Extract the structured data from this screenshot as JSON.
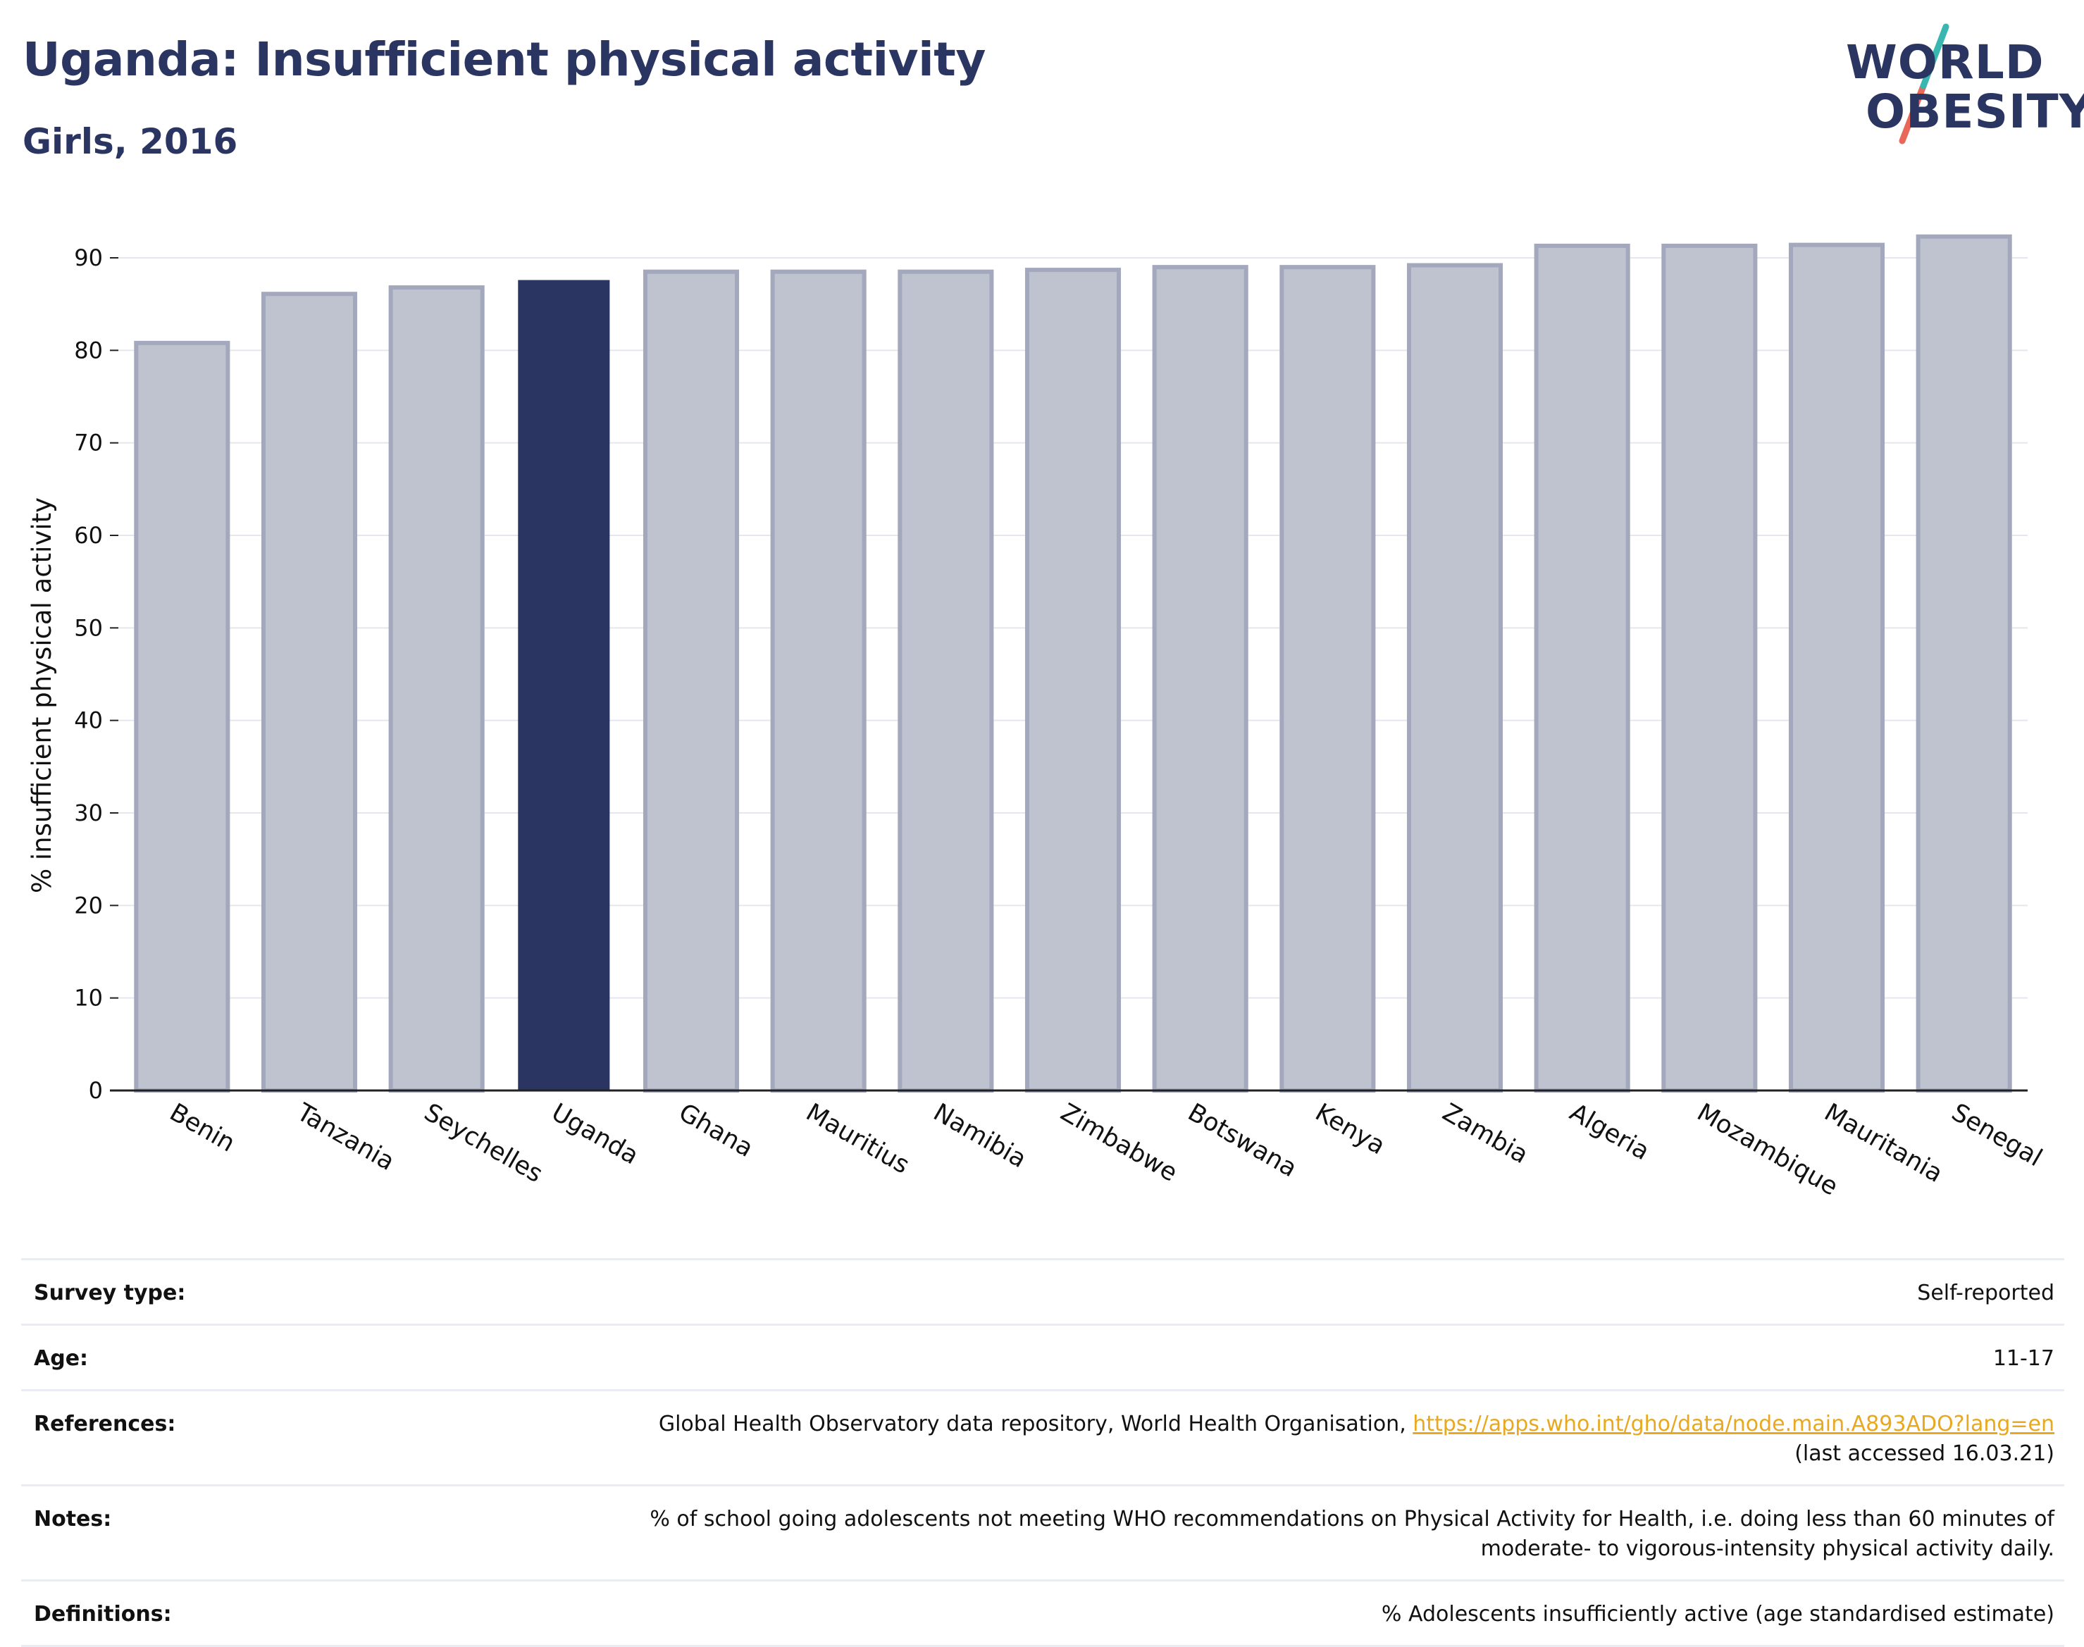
{
  "header": {
    "title": "Uganda: Insufficient physical activity",
    "subtitle": "Girls, 2016"
  },
  "logo": {
    "line1": "WORLD",
    "line2": "OBESITY",
    "accent_teal": "#3ab6b0",
    "accent_red": "#e8685a"
  },
  "chart_data": {
    "type": "bar",
    "ylabel": "% insufficient physical activity",
    "xlabel": "",
    "ylim": [
      0,
      95
    ],
    "yticks": [
      0,
      10,
      20,
      30,
      40,
      50,
      60,
      70,
      80,
      90
    ],
    "grid": true,
    "categories": [
      "Benin",
      "Tanzania",
      "Seychelles",
      "Uganda",
      "Ghana",
      "Mauritius",
      "Namibia",
      "Zimbabwe",
      "Botswana",
      "Kenya",
      "Zambia",
      "Algeria",
      "Mozambique",
      "Mauritania",
      "Senegal"
    ],
    "values": [
      80.8,
      86.1,
      86.8,
      87.6,
      88.5,
      88.5,
      88.5,
      88.7,
      89.0,
      89.0,
      89.2,
      91.3,
      91.3,
      91.4,
      92.3
    ],
    "highlight": "Uganda",
    "colors": {
      "bar": "#bfc2cf",
      "bar_edge": "#a3a8bd",
      "highlight": "#2b3562"
    }
  },
  "info": {
    "survey_type": {
      "label": "Survey type:",
      "value": "Self-reported"
    },
    "age": {
      "label": "Age:",
      "value": "11-17"
    },
    "references": {
      "label": "References:",
      "text": "Global Health Observatory data repository, World Health Organisation, ",
      "link": "https://apps.who.int/gho/data/node.main.A893ADO?lang=en",
      "accessed": "(last accessed 16.03.21)"
    },
    "notes": {
      "label": "Notes:",
      "line1": "% of school going adolescents not meeting WHO recommendations on Physical Activity for Health, i.e. doing less than 60 minutes of",
      "line2": "moderate- to vigorous-intensity physical activity daily."
    },
    "definitions": {
      "label": "Definitions:",
      "value": "% Adolescents insufficiently active (age standardised estimate)"
    }
  }
}
